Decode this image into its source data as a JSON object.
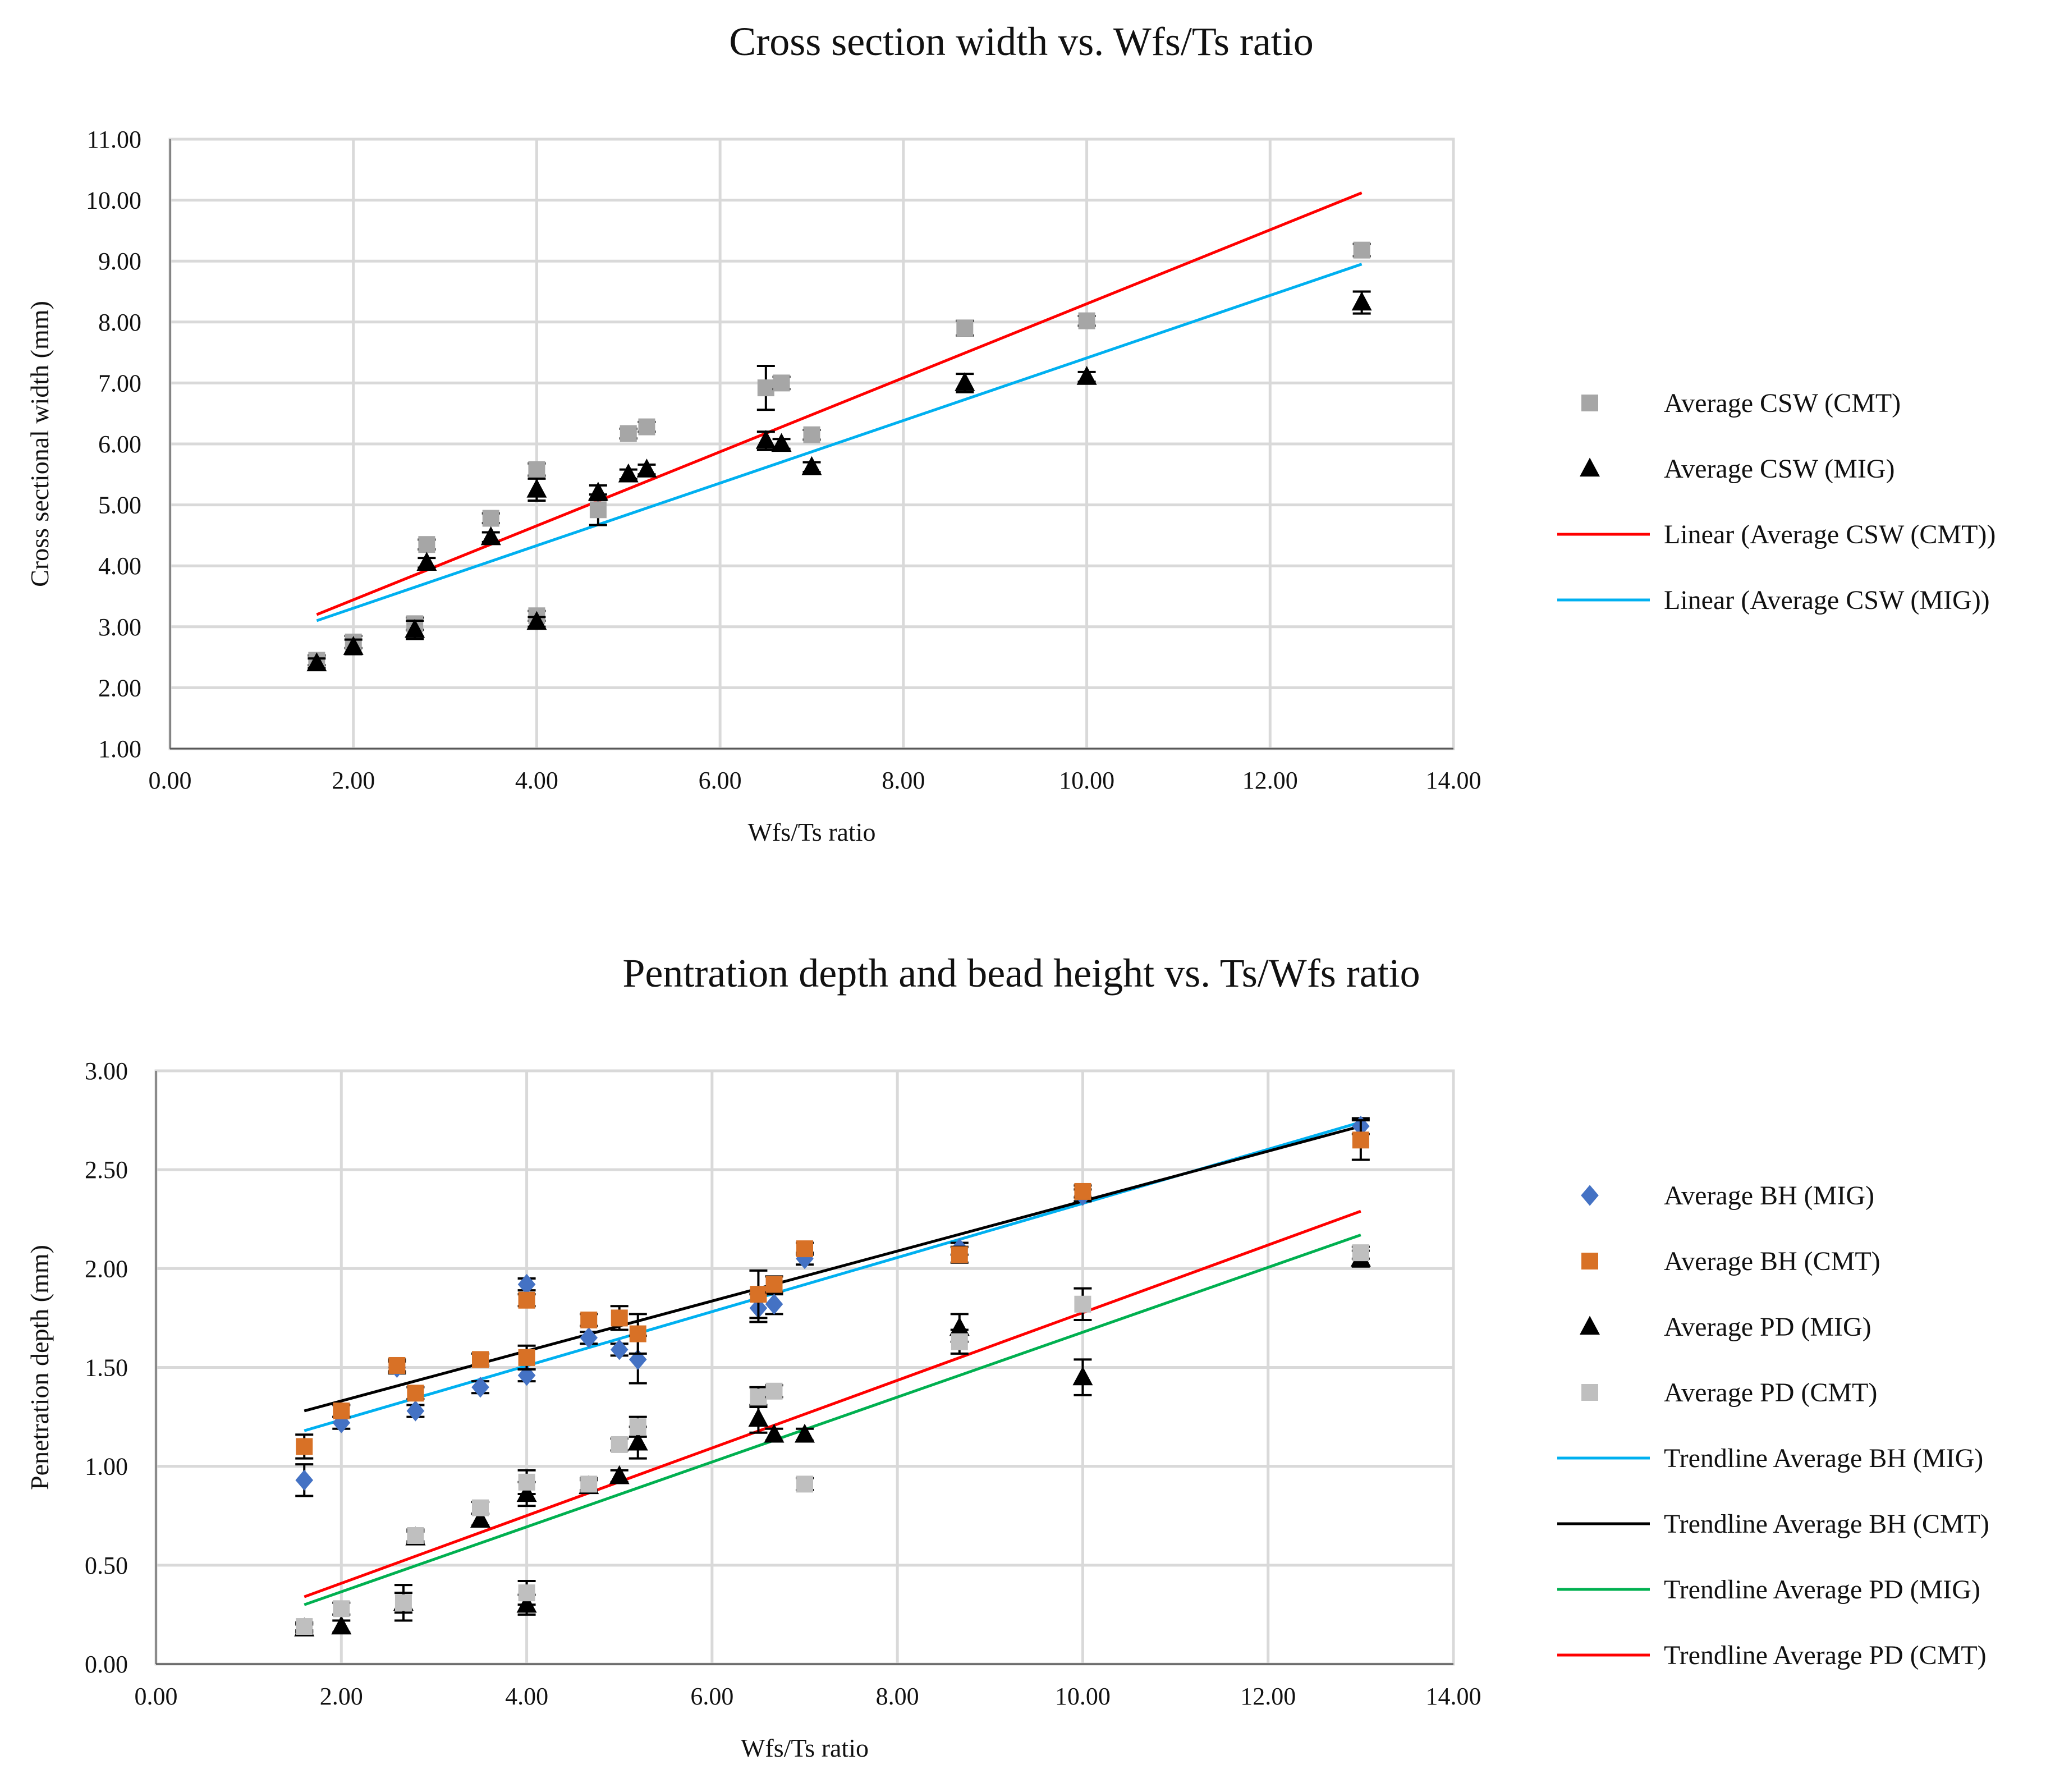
{
  "chart_data": [
    {
      "type": "scatter",
      "title": "Cross section width vs. Wfs/Ts ratio",
      "xlabel": "Wfs/Ts ratio",
      "ylabel": "Cross sectional width (mm)",
      "xlim": [
        0,
        14
      ],
      "ylim": [
        1,
        11
      ],
      "xticks": [
        "0.00",
        "2.00",
        "4.00",
        "6.00",
        "8.00",
        "10.00",
        "12.00",
        "14.00"
      ],
      "yticks": [
        "1.00",
        "2.00",
        "3.00",
        "4.00",
        "5.00",
        "6.00",
        "7.00",
        "8.00",
        "9.00",
        "10.00",
        "11.00"
      ],
      "grid": true,
      "legend_position": "right",
      "series": [
        {
          "name": "Average CSW (CMT)",
          "marker": "square",
          "color": "#a6a6a6",
          "points": [
            {
              "x": 1.6,
              "y": 2.45,
              "err": 0.08
            },
            {
              "x": 2.0,
              "y": 2.75,
              "err": 0.1
            },
            {
              "x": 2.67,
              "y": 3.05,
              "err": 0.1
            },
            {
              "x": 2.8,
              "y": 4.35,
              "err": 0.08
            },
            {
              "x": 3.5,
              "y": 4.78,
              "err": 0.08
            },
            {
              "x": 4.0,
              "y": 5.58,
              "err": 0.1
            },
            {
              "x": 4.0,
              "y": 3.18,
              "err": 0.08
            },
            {
              "x": 4.67,
              "y": 4.92,
              "err": 0.25
            },
            {
              "x": 5.0,
              "y": 6.17,
              "err": 0.08
            },
            {
              "x": 5.2,
              "y": 6.28,
              "err": 0.08
            },
            {
              "x": 6.5,
              "y": 6.92,
              "err": 0.36
            },
            {
              "x": 6.67,
              "y": 7.0,
              "err": 0.1
            },
            {
              "x": 7.0,
              "y": 6.15,
              "err": 0.08
            },
            {
              "x": 8.67,
              "y": 7.9,
              "err": 0.12
            },
            {
              "x": 10.0,
              "y": 8.02,
              "err": 0.08
            },
            {
              "x": 13.0,
              "y": 9.18,
              "err": 0.1
            }
          ]
        },
        {
          "name": "Average CSW (MIG)",
          "marker": "triangle",
          "color": "#000000",
          "points": [
            {
              "x": 1.6,
              "y": 2.4,
              "err": 0.08
            },
            {
              "x": 2.0,
              "y": 2.67,
              "err": 0.12
            },
            {
              "x": 2.67,
              "y": 2.95,
              "err": 0.15
            },
            {
              "x": 2.8,
              "y": 4.05,
              "err": 0.08
            },
            {
              "x": 3.5,
              "y": 4.47,
              "err": 0.08
            },
            {
              "x": 4.0,
              "y": 5.25,
              "err": 0.18
            },
            {
              "x": 4.0,
              "y": 3.08,
              "err": 0.08
            },
            {
              "x": 4.67,
              "y": 5.2,
              "err": 0.12
            },
            {
              "x": 5.0,
              "y": 5.5,
              "err": 0.08
            },
            {
              "x": 5.2,
              "y": 5.58,
              "err": 0.08
            },
            {
              "x": 6.5,
              "y": 6.05,
              "err": 0.15
            },
            {
              "x": 6.67,
              "y": 6.0,
              "err": 0.08
            },
            {
              "x": 7.0,
              "y": 5.62,
              "err": 0.08
            },
            {
              "x": 8.67,
              "y": 7.0,
              "err": 0.15
            },
            {
              "x": 10.0,
              "y": 7.1,
              "err": 0.08
            },
            {
              "x": 13.0,
              "y": 8.32,
              "err": 0.18
            }
          ]
        },
        {
          "name": "Linear (Average CSW (CMT))",
          "marker": "line",
          "color": "#ff0000",
          "points": [
            {
              "x": 1.6,
              "y": 3.2
            },
            {
              "x": 13.0,
              "y": 10.12
            }
          ]
        },
        {
          "name": "Linear (Average CSW (MIG))",
          "marker": "line",
          "color": "#00b0f0",
          "points": [
            {
              "x": 1.6,
              "y": 3.1
            },
            {
              "x": 13.0,
              "y": 8.95
            }
          ]
        }
      ]
    },
    {
      "type": "scatter",
      "title": "Pentration depth and bead height vs. Ts/Wfs ratio",
      "xlabel": "Wfs/Ts ratio",
      "ylabel": "Penetration depth (mm)",
      "xlim": [
        0,
        14
      ],
      "ylim": [
        0,
        3
      ],
      "xticks": [
        "0.00",
        "2.00",
        "4.00",
        "6.00",
        "8.00",
        "10.00",
        "12.00",
        "14.00"
      ],
      "yticks": [
        "0.00",
        "0.50",
        "1.00",
        "1.50",
        "2.00",
        "2.50",
        "3.00"
      ],
      "grid": true,
      "legend_position": "right",
      "series": [
        {
          "name": "Average BH (MIG)",
          "marker": "diamond",
          "color": "#4472c4",
          "points": [
            {
              "x": 1.6,
              "y": 0.93,
              "err": 0.08
            },
            {
              "x": 2.0,
              "y": 1.22,
              "err": 0.03
            },
            {
              "x": 2.6,
              "y": 1.5,
              "err": 0.03
            },
            {
              "x": 2.8,
              "y": 1.28,
              "err": 0.03
            },
            {
              "x": 3.5,
              "y": 1.4,
              "err": 0.03
            },
            {
              "x": 4.0,
              "y": 1.92,
              "err": 0.03
            },
            {
              "x": 4.0,
              "y": 1.46,
              "err": 0.03
            },
            {
              "x": 4.67,
              "y": 1.65,
              "err": 0.03
            },
            {
              "x": 5.0,
              "y": 1.59,
              "err": 0.03
            },
            {
              "x": 5.2,
              "y": 1.54,
              "err": 0.12
            },
            {
              "x": 6.5,
              "y": 1.8,
              "err": 0.07
            },
            {
              "x": 6.67,
              "y": 1.82,
              "err": 0.05
            },
            {
              "x": 7.0,
              "y": 2.05,
              "err": 0.03
            },
            {
              "x": 8.67,
              "y": 2.1,
              "err": 0.03
            },
            {
              "x": 10.0,
              "y": 2.37,
              "err": 0.03
            },
            {
              "x": 13.0,
              "y": 2.72,
              "err": 0.04
            }
          ]
        },
        {
          "name": "Average BH (CMT)",
          "marker": "square",
          "color": "#d87126",
          "points": [
            {
              "x": 1.6,
              "y": 1.1,
              "err": 0.06
            },
            {
              "x": 2.0,
              "y": 1.28,
              "err": 0.03
            },
            {
              "x": 2.6,
              "y": 1.51,
              "err": 0.03
            },
            {
              "x": 2.8,
              "y": 1.37,
              "err": 0.03
            },
            {
              "x": 3.5,
              "y": 1.54,
              "err": 0.03
            },
            {
              "x": 4.0,
              "y": 1.84,
              "err": 0.03
            },
            {
              "x": 4.0,
              "y": 1.55,
              "err": 0.06
            },
            {
              "x": 4.67,
              "y": 1.74,
              "err": 0.03
            },
            {
              "x": 5.0,
              "y": 1.75,
              "err": 0.06
            },
            {
              "x": 5.2,
              "y": 1.67,
              "err": 0.1
            },
            {
              "x": 6.5,
              "y": 1.87,
              "err": 0.12
            },
            {
              "x": 6.67,
              "y": 1.92,
              "err": 0.04
            },
            {
              "x": 7.0,
              "y": 2.1,
              "err": 0.03
            },
            {
              "x": 8.67,
              "y": 2.07,
              "err": 0.04
            },
            {
              "x": 10.0,
              "y": 2.39,
              "err": 0.03
            },
            {
              "x": 13.0,
              "y": 2.65,
              "err": 0.1
            }
          ]
        },
        {
          "name": "Average PD (MIG)",
          "marker": "triangle",
          "color": "#000000",
          "points": [
            {
              "x": 1.6,
              "y": 0.18,
              "err": 0.02
            },
            {
              "x": 2.0,
              "y": 0.19,
              "err": 0.03
            },
            {
              "x": 2.67,
              "y": 0.31,
              "err": 0.09
            },
            {
              "x": 2.8,
              "y": 0.64,
              "err": 0.03
            },
            {
              "x": 3.5,
              "y": 0.73,
              "err": 0.03
            },
            {
              "x": 4.0,
              "y": 0.86,
              "err": 0.06
            },
            {
              "x": 4.0,
              "y": 0.3,
              "err": 0.05
            },
            {
              "x": 4.67,
              "y": 0.9,
              "err": 0.03
            },
            {
              "x": 5.0,
              "y": 0.95,
              "err": 0.03
            },
            {
              "x": 5.2,
              "y": 1.12,
              "err": 0.08
            },
            {
              "x": 6.5,
              "y": 1.24,
              "err": 0.07
            },
            {
              "x": 6.67,
              "y": 1.16,
              "err": 0.03
            },
            {
              "x": 7.0,
              "y": 1.16,
              "err": 0.03
            },
            {
              "x": 8.67,
              "y": 1.7,
              "err": 0.07
            },
            {
              "x": 10.0,
              "y": 1.45,
              "err": 0.09
            },
            {
              "x": 13.0,
              "y": 2.05,
              "err": 0.04
            }
          ]
        },
        {
          "name": "Average PD (CMT)",
          "marker": "square",
          "color": "#bfbfbf",
          "points": [
            {
              "x": 1.6,
              "y": 0.19,
              "err": 0.02
            },
            {
              "x": 2.0,
              "y": 0.28,
              "err": 0.03
            },
            {
              "x": 2.67,
              "y": 0.31,
              "err": 0.05
            },
            {
              "x": 2.8,
              "y": 0.65,
              "err": 0.03
            },
            {
              "x": 3.5,
              "y": 0.79,
              "err": 0.03
            },
            {
              "x": 4.0,
              "y": 0.92,
              "err": 0.06
            },
            {
              "x": 4.0,
              "y": 0.36,
              "err": 0.06
            },
            {
              "x": 4.67,
              "y": 0.91,
              "err": 0.03
            },
            {
              "x": 5.0,
              "y": 1.11,
              "err": 0.03
            },
            {
              "x": 5.2,
              "y": 1.2,
              "err": 0.05
            },
            {
              "x": 6.5,
              "y": 1.35,
              "err": 0.05
            },
            {
              "x": 6.67,
              "y": 1.38,
              "err": 0.03
            },
            {
              "x": 7.0,
              "y": 0.91,
              "err": 0.03
            },
            {
              "x": 8.67,
              "y": 1.63,
              "err": 0.06
            },
            {
              "x": 10.0,
              "y": 1.82,
              "err": 0.08
            },
            {
              "x": 13.0,
              "y": 2.08,
              "err": 0.03
            }
          ]
        },
        {
          "name": "Trendline Average BH (MIG)",
          "marker": "line",
          "color": "#00b0f0",
          "points": [
            {
              "x": 1.6,
              "y": 1.18
            },
            {
              "x": 13.0,
              "y": 2.74
            }
          ]
        },
        {
          "name": "Trendline Average BH (CMT)",
          "marker": "line",
          "color": "#000000",
          "points": [
            {
              "x": 1.6,
              "y": 1.28
            },
            {
              "x": 13.0,
              "y": 2.72
            }
          ]
        },
        {
          "name": "Trendline Average PD (MIG)",
          "marker": "line",
          "color": "#00b050",
          "points": [
            {
              "x": 1.6,
              "y": 0.3
            },
            {
              "x": 13.0,
              "y": 2.17
            }
          ]
        },
        {
          "name": "Trendline Average PD (CMT)",
          "marker": "line",
          "color": "#ff0000",
          "points": [
            {
              "x": 1.6,
              "y": 0.34
            },
            {
              "x": 13.0,
              "y": 2.29
            }
          ]
        }
      ]
    }
  ]
}
